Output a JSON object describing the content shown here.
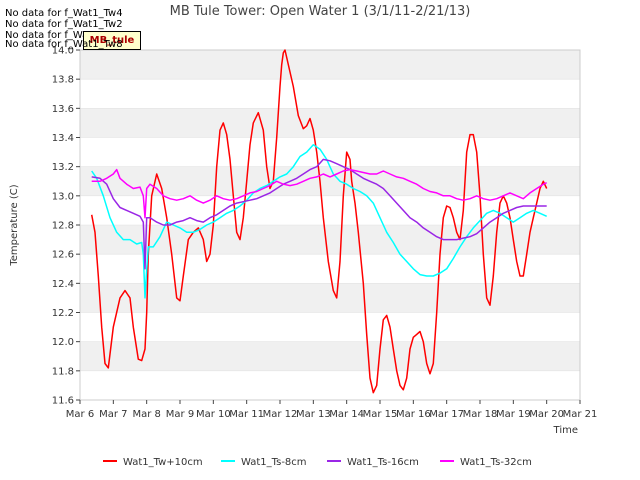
{
  "chart_data": {
    "type": "line",
    "title": "MB Tule Tower: Open Water 1 (3/1/11-2/21/13)",
    "xlabel": "Time",
    "ylabel": "Temperature (C)",
    "xlim": [
      0,
      15
    ],
    "ylim": [
      11.6,
      14.0
    ],
    "x_ticks": [
      "Mar 6",
      "Mar 7",
      "Mar 8",
      "Mar 9",
      "Mar 10",
      "Mar 11",
      "Mar 12",
      "Mar 13",
      "Mar 14",
      "Mar 15",
      "Mar 16",
      "Mar 17",
      "Mar 18",
      "Mar 19",
      "Mar 20",
      "Mar 21"
    ],
    "y_ticks": [
      "11.6",
      "11.8",
      "12.0",
      "12.2",
      "12.4",
      "12.6",
      "12.8",
      "13.0",
      "13.2",
      "13.4",
      "13.6",
      "13.8",
      "14.0"
    ],
    "grid": "horizontal bands",
    "legend_position": "bottom",
    "no_data_messages": [
      "No data for f_Wat1_Tw4",
      "No data for f_Wat1_Tw2",
      "No data for f_Wat1_Ts2",
      "No data for f_Wat1_Tw8"
    ],
    "badge_label": "MB_tule",
    "series": [
      {
        "name": "Wat1_Tw+10cm",
        "color": "#ff0000",
        "x": [
          0.35,
          0.45,
          0.55,
          0.65,
          0.75,
          0.85,
          1.0,
          1.2,
          1.35,
          1.5,
          1.6,
          1.75,
          1.85,
          1.95,
          2.0,
          2.05,
          2.15,
          2.3,
          2.45,
          2.6,
          2.75,
          2.9,
          3.0,
          3.1,
          3.25,
          3.4,
          3.55,
          3.7,
          3.8,
          3.9,
          4.0,
          4.1,
          4.2,
          4.3,
          4.4,
          4.5,
          4.6,
          4.7,
          4.8,
          4.9,
          5.0,
          5.1,
          5.2,
          5.35,
          5.5,
          5.6,
          5.7,
          5.8,
          5.9,
          6.0,
          6.05,
          6.1,
          6.15,
          6.25,
          6.4,
          6.55,
          6.7,
          6.8,
          6.9,
          7.0,
          7.1,
          7.2,
          7.3,
          7.45,
          7.6,
          7.7,
          7.8,
          7.9,
          8.0,
          8.1,
          8.15,
          8.25,
          8.35,
          8.5,
          8.6,
          8.7,
          8.8,
          8.9,
          9.0,
          9.1,
          9.2,
          9.3,
          9.4,
          9.5,
          9.6,
          9.7,
          9.8,
          9.9,
          10.0,
          10.1,
          10.2,
          10.3,
          10.4,
          10.5,
          10.6,
          10.7,
          10.8,
          10.9,
          11.0,
          11.1,
          11.2,
          11.3,
          11.4,
          11.5,
          11.6,
          11.7,
          11.8,
          11.9,
          12.0,
          12.1,
          12.2,
          12.3,
          12.4,
          12.5,
          12.6,
          12.7,
          12.8,
          12.9,
          13.0,
          13.1,
          13.2,
          13.3,
          13.4,
          13.5,
          13.6,
          13.7,
          13.8,
          13.9,
          14.0
        ],
        "values": [
          12.87,
          12.75,
          12.45,
          12.1,
          11.85,
          11.82,
          12.1,
          12.3,
          12.35,
          12.3,
          12.1,
          11.88,
          11.87,
          11.95,
          12.2,
          12.6,
          13.0,
          13.15,
          13.05,
          12.85,
          12.6,
          12.3,
          12.28,
          12.45,
          12.7,
          12.75,
          12.78,
          12.7,
          12.55,
          12.6,
          12.8,
          13.2,
          13.45,
          13.5,
          13.42,
          13.25,
          13.0,
          12.75,
          12.7,
          12.85,
          13.1,
          13.35,
          13.5,
          13.57,
          13.45,
          13.2,
          13.05,
          13.1,
          13.4,
          13.75,
          13.9,
          13.98,
          14.0,
          13.9,
          13.75,
          13.55,
          13.46,
          13.48,
          13.53,
          13.45,
          13.3,
          13.1,
          12.85,
          12.55,
          12.35,
          12.3,
          12.55,
          13.0,
          13.3,
          13.25,
          13.1,
          12.95,
          12.75,
          12.4,
          12.05,
          11.75,
          11.65,
          11.7,
          11.95,
          12.15,
          12.18,
          12.1,
          11.95,
          11.8,
          11.7,
          11.67,
          11.75,
          11.95,
          12.03,
          12.05,
          12.07,
          12.0,
          11.85,
          11.78,
          11.85,
          12.2,
          12.6,
          12.85,
          12.93,
          12.92,
          12.85,
          12.75,
          12.7,
          12.9,
          13.3,
          13.42,
          13.42,
          13.3,
          13.0,
          12.6,
          12.3,
          12.25,
          12.45,
          12.75,
          12.95,
          13.0,
          12.95,
          12.85,
          12.7,
          12.55,
          12.45,
          12.45,
          12.6,
          12.75,
          12.85,
          12.95,
          13.05,
          13.1,
          13.05
        ]
      },
      {
        "name": "Wat1_Ts-8cm",
        "color": "#00ffff",
        "x": [
          0.35,
          0.5,
          0.7,
          0.9,
          1.1,
          1.3,
          1.5,
          1.7,
          1.85,
          1.9,
          1.95,
          2.0,
          2.05,
          2.2,
          2.4,
          2.6,
          2.8,
          3.0,
          3.2,
          3.4,
          3.6,
          3.8,
          4.0,
          4.2,
          4.4,
          4.6,
          4.8,
          5.0,
          5.2,
          5.4,
          5.6,
          5.8,
          6.0,
          6.2,
          6.4,
          6.6,
          6.8,
          7.0,
          7.2,
          7.4,
          7.6,
          7.8,
          8.0,
          8.2,
          8.4,
          8.6,
          8.8,
          9.0,
          9.2,
          9.4,
          9.6,
          9.8,
          10.0,
          10.2,
          10.4,
          10.6,
          10.8,
          11.0,
          11.2,
          11.4,
          11.6,
          11.8,
          12.0,
          12.2,
          12.4,
          12.6,
          12.8,
          13.0,
          13.2,
          13.4,
          13.6,
          13.8,
          14.0
        ],
        "values": [
          13.17,
          13.12,
          13.0,
          12.85,
          12.75,
          12.7,
          12.7,
          12.67,
          12.68,
          12.6,
          12.3,
          12.5,
          12.65,
          12.65,
          12.72,
          12.82,
          12.8,
          12.78,
          12.75,
          12.75,
          12.77,
          12.8,
          12.82,
          12.85,
          12.88,
          12.9,
          12.93,
          12.97,
          13.02,
          13.05,
          13.07,
          13.1,
          13.13,
          13.15,
          13.2,
          13.27,
          13.3,
          13.35,
          13.32,
          13.25,
          13.15,
          13.1,
          13.08,
          13.05,
          13.03,
          13.0,
          12.95,
          12.85,
          12.75,
          12.68,
          12.6,
          12.55,
          12.5,
          12.46,
          12.45,
          12.45,
          12.47,
          12.5,
          12.57,
          12.65,
          12.72,
          12.78,
          12.83,
          12.88,
          12.9,
          12.88,
          12.85,
          12.82,
          12.85,
          12.88,
          12.9,
          12.88,
          12.86
        ]
      },
      {
        "name": "Wat1_Ts-16cm",
        "color": "#9a26e6",
        "x": [
          0.35,
          0.6,
          0.8,
          1.0,
          1.2,
          1.4,
          1.6,
          1.8,
          1.9,
          1.95,
          2.0,
          2.1,
          2.3,
          2.5,
          2.7,
          2.9,
          3.1,
          3.3,
          3.5,
          3.7,
          3.9,
          4.1,
          4.3,
          4.5,
          4.7,
          4.9,
          5.1,
          5.3,
          5.5,
          5.7,
          5.9,
          6.1,
          6.3,
          6.5,
          6.7,
          6.9,
          7.1,
          7.3,
          7.5,
          7.7,
          7.9,
          8.1,
          8.3,
          8.5,
          8.7,
          8.9,
          9.1,
          9.3,
          9.5,
          9.7,
          9.9,
          10.1,
          10.3,
          10.5,
          10.7,
          10.9,
          11.1,
          11.3,
          11.5,
          11.7,
          11.9,
          12.1,
          12.3,
          12.5,
          12.7,
          12.9,
          13.1,
          13.3,
          13.5,
          13.7,
          13.9,
          14.0
        ],
        "values": [
          13.13,
          13.12,
          13.08,
          12.98,
          12.92,
          12.9,
          12.88,
          12.86,
          12.82,
          12.5,
          12.85,
          12.85,
          12.82,
          12.8,
          12.8,
          12.82,
          12.83,
          12.85,
          12.83,
          12.82,
          12.85,
          12.87,
          12.9,
          12.93,
          12.95,
          12.96,
          12.97,
          12.98,
          13.0,
          13.02,
          13.05,
          13.08,
          13.1,
          13.12,
          13.15,
          13.18,
          13.2,
          13.25,
          13.24,
          13.22,
          13.2,
          13.18,
          13.15,
          13.12,
          13.1,
          13.08,
          13.05,
          13.0,
          12.95,
          12.9,
          12.85,
          12.82,
          12.78,
          12.75,
          12.72,
          12.7,
          12.7,
          12.7,
          12.71,
          12.72,
          12.74,
          12.78,
          12.82,
          12.85,
          12.88,
          12.9,
          12.92,
          12.93,
          12.93,
          12.93,
          12.93,
          12.93
        ]
      },
      {
        "name": "Wat1_Ts-32cm",
        "color": "#ff00ff",
        "x": [
          0.35,
          0.6,
          0.8,
          1.0,
          1.1,
          1.2,
          1.4,
          1.6,
          1.8,
          1.9,
          1.95,
          2.0,
          2.1,
          2.3,
          2.5,
          2.7,
          2.9,
          3.1,
          3.3,
          3.5,
          3.7,
          3.9,
          4.1,
          4.3,
          4.5,
          4.7,
          4.9,
          5.1,
          5.3,
          5.5,
          5.7,
          5.9,
          6.1,
          6.3,
          6.5,
          6.7,
          6.9,
          7.1,
          7.3,
          7.5,
          7.7,
          7.9,
          8.1,
          8.3,
          8.5,
          8.7,
          8.9,
          9.1,
          9.3,
          9.5,
          9.7,
          9.9,
          10.1,
          10.3,
          10.5,
          10.7,
          10.9,
          11.1,
          11.3,
          11.5,
          11.7,
          11.9,
          12.1,
          12.3,
          12.5,
          12.7,
          12.9,
          13.1,
          13.3,
          13.5,
          13.7,
          13.9,
          14.0
        ],
        "values": [
          13.1,
          13.1,
          13.12,
          13.15,
          13.18,
          13.12,
          13.08,
          13.05,
          13.06,
          13.0,
          12.85,
          13.05,
          13.08,
          13.05,
          13.0,
          12.98,
          12.97,
          12.98,
          13.0,
          12.97,
          12.95,
          12.97,
          13.0,
          12.98,
          12.97,
          12.98,
          13.0,
          13.02,
          13.03,
          13.05,
          13.07,
          13.1,
          13.08,
          13.07,
          13.08,
          13.1,
          13.12,
          13.13,
          13.15,
          13.13,
          13.15,
          13.17,
          13.18,
          13.17,
          13.16,
          13.15,
          13.15,
          13.17,
          13.15,
          13.13,
          13.12,
          13.1,
          13.08,
          13.05,
          13.03,
          13.02,
          13.0,
          13.0,
          12.98,
          12.97,
          12.98,
          13.0,
          12.98,
          12.97,
          12.98,
          13.0,
          13.02,
          13.0,
          12.98,
          13.02,
          13.05,
          13.08,
          13.09
        ]
      }
    ]
  }
}
